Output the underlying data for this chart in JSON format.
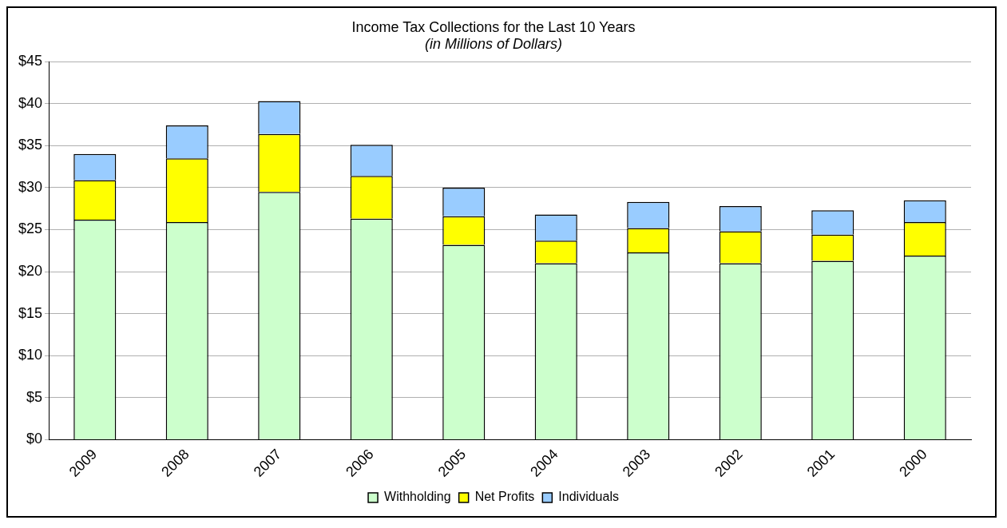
{
  "chart_data": {
    "type": "bar",
    "title": "Income Tax Collections for the Last 10 Years",
    "subtitle": "(in Millions of Dollars)",
    "categories": [
      "2009",
      "2008",
      "2007",
      "2006",
      "2005",
      "2004",
      "2003",
      "2002",
      "2001",
      "2000"
    ],
    "stacked": true,
    "series": [
      {
        "name": "Withholding",
        "color": "#ccffcc",
        "values": [
          26.2,
          25.9,
          29.5,
          26.3,
          23.2,
          21.0,
          22.3,
          21.0,
          21.3,
          21.9
        ]
      },
      {
        "name": "Net Profits",
        "color": "#ffff00",
        "values": [
          4.7,
          7.6,
          6.9,
          5.1,
          3.4,
          2.7,
          2.9,
          3.8,
          3.1,
          4.0
        ]
      },
      {
        "name": "Individuals",
        "color": "#99ccff",
        "values": [
          3.1,
          3.9,
          3.9,
          3.7,
          3.4,
          3.1,
          3.1,
          3.0,
          2.9,
          2.6
        ]
      }
    ],
    "ylim": [
      0,
      45
    ],
    "yticks": [
      {
        "value": 0,
        "label": "$0"
      },
      {
        "value": 5,
        "label": "$5"
      },
      {
        "value": 10,
        "label": "$10"
      },
      {
        "value": 15,
        "label": "$15"
      },
      {
        "value": 20,
        "label": "$20"
      },
      {
        "value": 25,
        "label": "$25"
      },
      {
        "value": 30,
        "label": "$30"
      },
      {
        "value": 35,
        "label": "$35"
      },
      {
        "value": 40,
        "label": "$40"
      },
      {
        "value": 45,
        "label": "$45"
      }
    ],
    "grid": "y",
    "legend": "bottom"
  }
}
